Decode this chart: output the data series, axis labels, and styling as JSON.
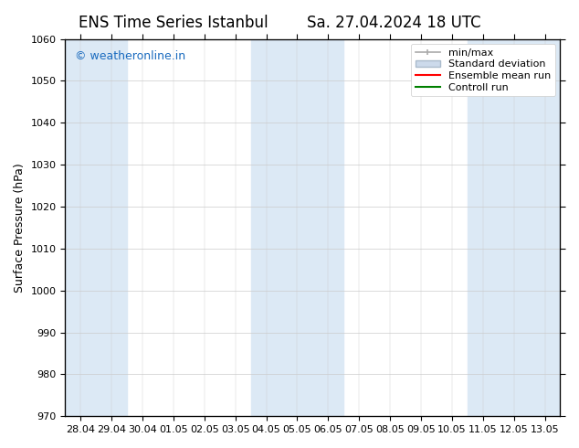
{
  "title_left": "ENS Time Series Istanbul",
  "title_right": "Sa. 27.04.2024 18 UTC",
  "ylabel": "Surface Pressure (hPa)",
  "ylim": [
    970,
    1060
  ],
  "yticks": [
    970,
    980,
    990,
    1000,
    1010,
    1020,
    1030,
    1040,
    1050,
    1060
  ],
  "xtick_labels": [
    "28.04",
    "29.04",
    "30.04",
    "01.05",
    "02.05",
    "03.05",
    "04.05",
    "05.05",
    "06.05",
    "07.05",
    "08.05",
    "09.05",
    "10.05",
    "11.05",
    "12.05",
    "13.05"
  ],
  "shaded_bands": [
    [
      "28.04",
      "29.04"
    ],
    [
      "04.05",
      "06.05"
    ],
    [
      "11.05",
      "13.05"
    ]
  ],
  "shaded_color": "#dce9f5",
  "background_color": "#ffffff",
  "watermark_text": "© weatheronline.in",
  "watermark_color": "#1a6bbf",
  "legend_minmax_color": "#aaaaaa",
  "legend_stddev_facecolor": "#ccdaeb",
  "legend_stddev_edgecolor": "#aabbcc",
  "legend_ensemble_color": "#ff0000",
  "legend_control_color": "#008000",
  "font_size_title": 12,
  "font_size_axis": 9,
  "font_size_tick": 8,
  "font_size_legend": 8,
  "font_size_watermark": 9
}
